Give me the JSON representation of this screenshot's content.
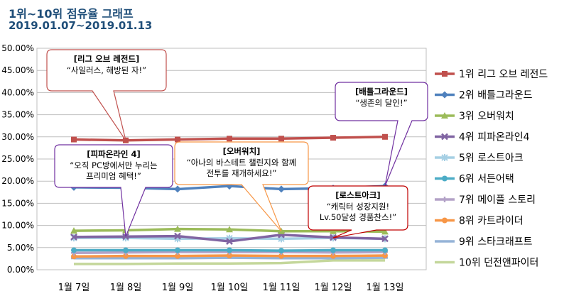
{
  "chart_data": {
    "type": "line",
    "title": "1위~10위 점유율 그래프",
    "subtitle": "2019.01.07~2019.01.13",
    "categories": [
      "1월 7일",
      "1월 8일",
      "1월 9일",
      "1월 10일",
      "1월 11일",
      "1월 12일",
      "1월 13일"
    ],
    "y_ticks": [
      "0.00%",
      "5.00%",
      "10.00%",
      "15.00%",
      "20.00%",
      "25.00%",
      "30.00%",
      "35.00%",
      "40.00%",
      "45.00%",
      "50.00%"
    ],
    "ylim": [
      0,
      50
    ],
    "grid": true,
    "legend_position": "right",
    "series": [
      {
        "name": "1위 리그 오브 레전드",
        "color": "#c0504d",
        "marker": "square",
        "values": [
          29.4,
          29.2,
          29.4,
          29.6,
          29.6,
          29.8,
          30.0
        ]
      },
      {
        "name": "2위 배틀그라운드",
        "color": "#4f81bd",
        "marker": "diamond",
        "values": [
          18.6,
          18.5,
          18.2,
          18.9,
          18.2,
          18.4,
          18.9
        ]
      },
      {
        "name": "3위 오버워치",
        "color": "#9bbb59",
        "marker": "triangle",
        "values": [
          8.8,
          8.9,
          9.2,
          9.1,
          8.7,
          8.7,
          8.6
        ]
      },
      {
        "name": "4위 피파온라인4",
        "color": "#8064a2",
        "marker": "x",
        "values": [
          7.4,
          7.5,
          7.6,
          6.4,
          7.9,
          7.3,
          7.0
        ]
      },
      {
        "name": "5위 로스트아크",
        "color": "#a5cfe4",
        "marker": "star",
        "values": [
          7.2,
          7.2,
          7.0,
          7.1,
          7.0,
          7.2,
          7.0
        ]
      },
      {
        "name": "6위 서든어택",
        "color": "#4bacc6",
        "marker": "circle",
        "values": [
          4.4,
          4.4,
          4.4,
          4.4,
          4.3,
          4.4,
          4.4
        ]
      },
      {
        "name": "7위 메이플 스토리",
        "color": "#b3a2c7",
        "marker": "plus",
        "values": [
          3.8,
          3.9,
          4.0,
          4.0,
          4.0,
          3.9,
          4.0
        ]
      },
      {
        "name": "8위 카트라이더",
        "color": "#f79646",
        "marker": "circle",
        "values": [
          3.0,
          3.1,
          3.1,
          3.2,
          3.1,
          3.1,
          3.2
        ]
      },
      {
        "name": "9위 스타크래프트",
        "color": "#95b3d7",
        "marker": "dash",
        "values": [
          2.6,
          2.6,
          2.6,
          2.7,
          2.6,
          2.6,
          2.7
        ]
      },
      {
        "name": "10위 던전앤파이터",
        "color": "#c4d79b",
        "marker": "none",
        "values": [
          1.3,
          1.3,
          1.4,
          1.4,
          1.5,
          2.1,
          2.1
        ]
      }
    ],
    "annotations": [
      {
        "id": "lol",
        "title": "[리그 오브 레전드]",
        "text": "“사일러스, 해방된 자!”",
        "color": "#c0504d",
        "point": [
          1,
          29.2
        ]
      },
      {
        "id": "pubg",
        "title": "[배틀그라운드]",
        "text": "“생존의 달인!”",
        "color": "#7030a0",
        "point": [
          6,
          18.9
        ]
      },
      {
        "id": "fifa",
        "title": "[피파온라인 4]",
        "text": [
          "“오직 PC방에서만 누리는",
          "프리미엄 혜택!”"
        ],
        "color": "#7030a0",
        "point": [
          1,
          7.5
        ]
      },
      {
        "id": "ow",
        "title": "[오버워치]",
        "text": [
          "“아나의 바스테트 챌린지와 함께",
          "전투를 재개하세요!”"
        ],
        "color": "#f79646",
        "point": [
          4,
          8.7
        ]
      },
      {
        "id": "la",
        "title": "[로스트아크]",
        "text": [
          "“캐릭터 성장지원!",
          "Lv.50달성 경품찬스!”"
        ],
        "color": "#c00000",
        "point": [
          5,
          7.2
        ]
      }
    ]
  }
}
